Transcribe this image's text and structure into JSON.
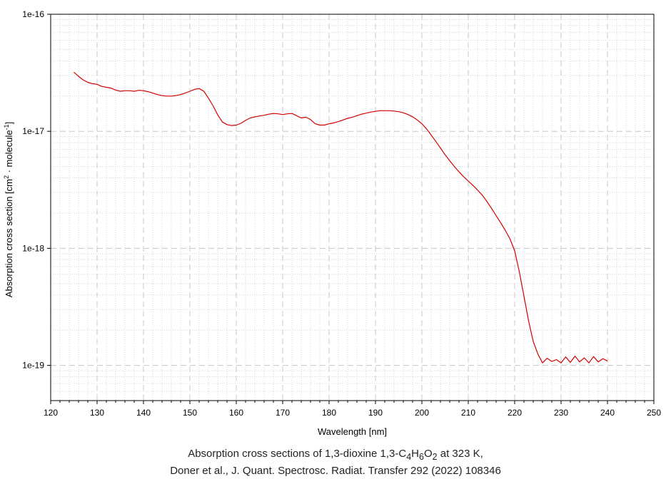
{
  "chart_data": {
    "type": "line",
    "title": "",
    "xlabel": "Wavelength [nm]",
    "ylabel_main": "Absorption cross section [cm",
    "ylabel_sup1": "2",
    "ylabel_mid": " · molecule",
    "ylabel_sup2": "-1",
    "ylabel_end": "]",
    "x_scale": "linear",
    "y_scale": "log",
    "xlim": [
      120,
      250
    ],
    "ylim": [
      5e-20,
      1e-16
    ],
    "grid": true,
    "x_ticks": [
      "120",
      "130",
      "140",
      "150",
      "160",
      "170",
      "180",
      "190",
      "200",
      "210",
      "220",
      "230",
      "240",
      "250"
    ],
    "x_tick_values": [
      120,
      130,
      140,
      150,
      160,
      170,
      180,
      190,
      200,
      210,
      220,
      230,
      240,
      250
    ],
    "y_ticks": [
      "1e-19",
      "1e-18",
      "1e-17",
      "1e-16"
    ],
    "y_tick_values": [
      1e-19,
      1e-18,
      1e-17,
      1e-16
    ],
    "line_color": "#d40000",
    "series": [
      {
        "x": [
          125,
          126,
          127,
          128,
          129,
          130,
          131,
          132,
          133,
          134,
          135,
          136,
          137,
          138,
          139,
          140,
          141,
          142,
          143,
          144,
          145,
          146,
          147,
          148,
          149,
          150,
          151,
          152,
          153,
          154,
          155,
          156,
          157,
          158,
          159,
          160,
          161,
          162,
          163,
          164,
          165,
          166,
          167,
          168,
          169,
          170,
          171,
          172,
          173,
          174,
          175,
          176,
          177,
          178,
          179,
          180,
          181,
          182,
          183,
          184,
          185,
          186,
          187,
          188,
          189,
          190,
          191,
          192,
          193,
          194,
          195,
          196,
          197,
          198,
          199,
          200,
          201,
          202,
          203,
          204,
          205,
          206,
          207,
          208,
          209,
          210,
          211,
          212,
          213,
          214,
          215,
          216,
          217,
          218,
          219,
          220,
          221,
          222,
          223,
          224,
          225,
          226,
          227,
          228,
          229,
          230,
          231,
          232,
          233,
          234,
          235,
          236,
          237,
          238,
          239,
          240
        ],
        "y": [
          3.2e-17,
          2.95e-17,
          2.75e-17,
          2.62e-17,
          2.55e-17,
          2.52e-17,
          2.42e-17,
          2.38e-17,
          2.34e-17,
          2.25e-17,
          2.2e-17,
          2.22e-17,
          2.22e-17,
          2.2e-17,
          2.24e-17,
          2.22e-17,
          2.18e-17,
          2.12e-17,
          2.06e-17,
          2.02e-17,
          2e-17,
          2e-17,
          2.02e-17,
          2.06e-17,
          2.12e-17,
          2.2e-17,
          2.28e-17,
          2.32e-17,
          2.2e-17,
          1.92e-17,
          1.65e-17,
          1.38e-17,
          1.2e-17,
          1.14e-17,
          1.12e-17,
          1.13e-17,
          1.17e-17,
          1.24e-17,
          1.3e-17,
          1.33e-17,
          1.35e-17,
          1.37e-17,
          1.4e-17,
          1.42e-17,
          1.41e-17,
          1.39e-17,
          1.41e-17,
          1.42e-17,
          1.36e-17,
          1.3e-17,
          1.32e-17,
          1.26e-17,
          1.16e-17,
          1.13e-17,
          1.13e-17,
          1.16e-17,
          1.18e-17,
          1.21e-17,
          1.25e-17,
          1.29e-17,
          1.32e-17,
          1.36e-17,
          1.4e-17,
          1.43e-17,
          1.46e-17,
          1.48e-17,
          1.5e-17,
          1.5e-17,
          1.5e-17,
          1.49e-17,
          1.47e-17,
          1.44e-17,
          1.39e-17,
          1.33e-17,
          1.25e-17,
          1.16e-17,
          1.05e-17,
          9.3e-18,
          8.2e-18,
          7.2e-18,
          6.3e-18,
          5.6e-18,
          5e-18,
          4.5e-18,
          4.1e-18,
          3.75e-18,
          3.45e-18,
          3.15e-18,
          2.85e-18,
          2.52e-18,
          2.2e-18,
          1.9e-18,
          1.65e-18,
          1.42e-18,
          1.2e-18,
          9.5e-19,
          6.3e-19,
          3.9e-19,
          2.4e-19,
          1.6e-19,
          1.25e-19,
          1.05e-19,
          1.15e-19,
          1.08e-19,
          1.12e-19,
          1.05e-19,
          1.18e-19,
          1.06e-19,
          1.2e-19,
          1.07e-19,
          1.16e-19,
          1.05e-19,
          1.19e-19,
          1.07e-19,
          1.14e-19,
          1.09e-19
        ]
      }
    ]
  },
  "caption": {
    "line1_prefix": "Absorption cross sections of 1,3-dioxine 1,3-C",
    "sub1": "4",
    "mid1": "H",
    "sub2": "6",
    "mid2": "O",
    "sub3": "2",
    "line1_suffix": " at 323 K,",
    "line2": "Doner et al., J. Quant. Spectrosc. Radiat. Transfer 292 (2022) 108346"
  }
}
